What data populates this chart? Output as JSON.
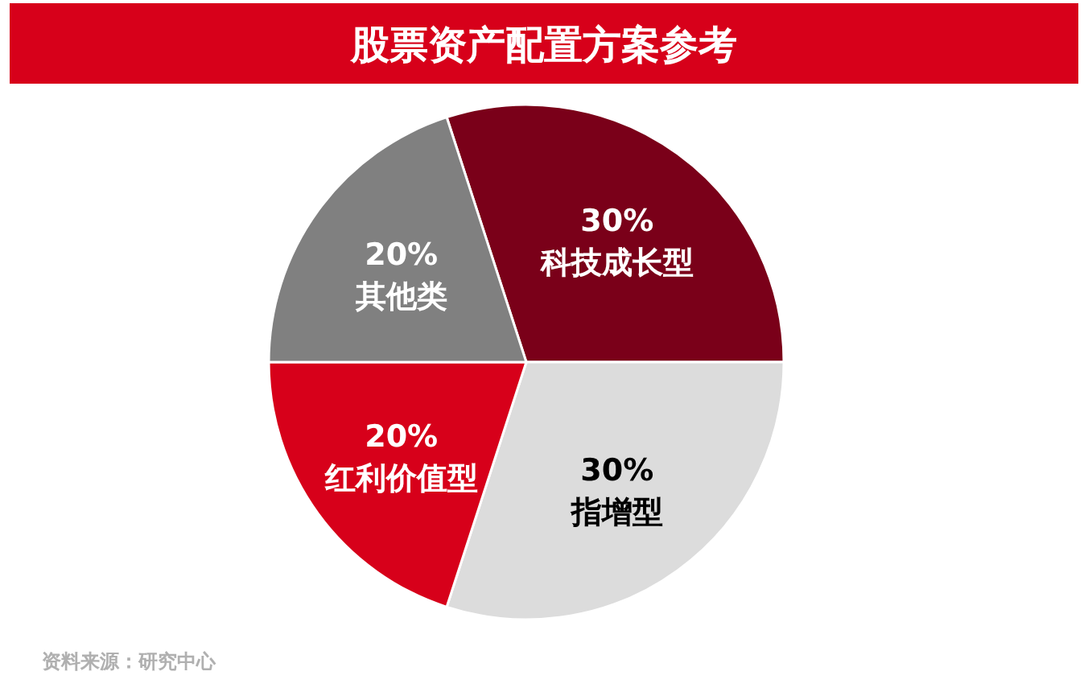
{
  "chart_data": {
    "type": "pie",
    "title": "股票资产配置方案参考",
    "categories": [
      "科技成长型",
      "指增型",
      "红利价值型",
      "其他类"
    ],
    "values": [
      30,
      30,
      20,
      20
    ],
    "colors": [
      "#7a0019",
      "#dcdcdc",
      "#d7001a",
      "#808080"
    ],
    "value_labels": [
      "30%",
      "30%",
      "20%",
      "20%"
    ],
    "annotations": [
      "资料来源：研究中心"
    ]
  }
}
